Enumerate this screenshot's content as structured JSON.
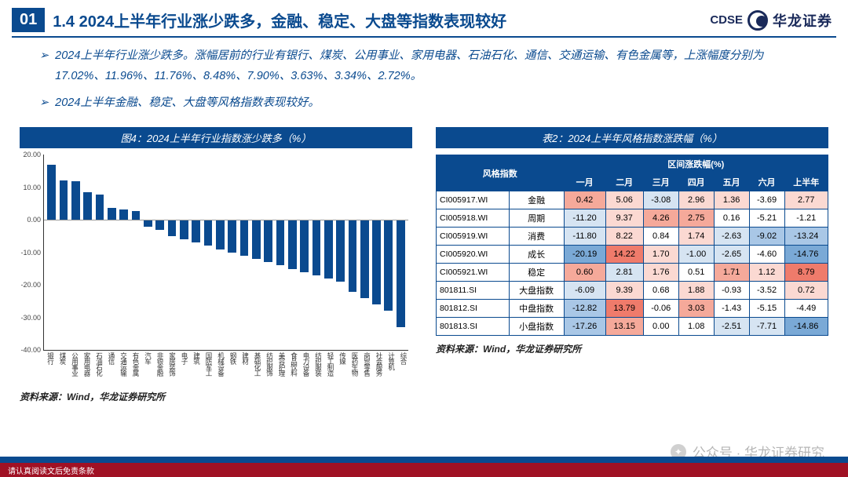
{
  "header": {
    "num": "01",
    "title": "1.4 2024上半年行业涨少跌多，金融、稳定、大盘等指数表现较好",
    "logo_cdse": "CDSE",
    "logo_cn": "华龙证券"
  },
  "bullets": [
    "2024上半年行业涨少跌多。涨幅居前的行业有银行、煤炭、公用事业、家用电器、石油石化、通信、交通运输、有色金属等，上涨幅度分别为17.02%、11.96%、11.76%、8.48%、7.90%、3.63%、3.34%、2.72%。",
    "2024上半年金融、稳定、大盘等风格指数表现较好。"
  ],
  "chart": {
    "title": "图4：2024上半年行业指数涨少跌多（%）",
    "ylim": [
      -40,
      20
    ],
    "y_ticks": [
      -40,
      -30,
      -20,
      -10,
      0,
      10,
      20
    ],
    "zero_at": 20,
    "categories": [
      "银行",
      "煤炭",
      "公用事业",
      "家用电器",
      "石油石化",
      "通信",
      "交通运输",
      "有色金属",
      "汽车",
      "非银金融",
      "家居装饰",
      "电子",
      "建筑",
      "国防军工",
      "机械设备",
      "钢铁",
      "建材",
      "基础化工",
      "纺织服饰",
      "美容护理",
      "食品饮料",
      "电力设备",
      "纺织服装",
      "轻工制造",
      "传媒",
      "医药生物",
      "商贸零售",
      "社会服务",
      "计算机",
      "综合"
    ],
    "values": [
      17.0,
      12.0,
      11.8,
      8.5,
      7.9,
      3.6,
      3.3,
      2.7,
      -2,
      -3,
      -5,
      -6,
      -7,
      -8,
      -9,
      -10,
      -11,
      -12,
      -13,
      -14,
      -15,
      -16,
      -17,
      -18,
      -19,
      -22,
      -24,
      -26,
      -28,
      -33
    ],
    "bar_color": "#0a4a8f",
    "src": "资料来源：Wind，华龙证券研究所"
  },
  "table": {
    "title": "表2：2024上半年风格指数涨跌幅（%）",
    "group1": "风格指数",
    "group2": "区间涨跌幅(%)",
    "months": [
      "一月",
      "二月",
      "三月",
      "四月",
      "五月",
      "六月",
      "上半年"
    ],
    "rows": [
      {
        "code": "CI005917.WI",
        "name": "金融",
        "vals": [
          "0.42",
          "5.06",
          "-3.08",
          "2.96",
          "1.36",
          "-3.69",
          "2.77"
        ]
      },
      {
        "code": "CI005918.WI",
        "name": "周期",
        "vals": [
          "-11.20",
          "9.37",
          "4.26",
          "2.75",
          "0.16",
          "-5.21",
          "-1.21"
        ]
      },
      {
        "code": "CI005919.WI",
        "name": "消费",
        "vals": [
          "-11.80",
          "8.22",
          "0.84",
          "1.74",
          "-2.63",
          "-9.02",
          "-13.24"
        ]
      },
      {
        "code": "CI005920.WI",
        "name": "成长",
        "vals": [
          "-20.19",
          "14.22",
          "1.70",
          "-1.00",
          "-2.65",
          "-4.60",
          "-14.76"
        ]
      },
      {
        "code": "CI005921.WI",
        "name": "稳定",
        "vals": [
          "0.60",
          "2.81",
          "1.76",
          "0.51",
          "1.71",
          "1.12",
          "8.79"
        ]
      },
      {
        "code": "801811.SI",
        "name": "大盘指数",
        "vals": [
          "-6.09",
          "9.39",
          "0.68",
          "1.88",
          "-0.93",
          "-3.52",
          "0.72"
        ]
      },
      {
        "code": "801812.SI",
        "name": "中盘指数",
        "vals": [
          "-12.82",
          "13.79",
          "-0.06",
          "3.03",
          "-1.43",
          "-5.15",
          "-4.49"
        ]
      },
      {
        "code": "801813.SI",
        "name": "小盘指数",
        "vals": [
          "-17.26",
          "13.15",
          "0.00",
          "1.08",
          "-2.51",
          "-7.71",
          "-14.86"
        ]
      }
    ],
    "heat": {
      "colors": {
        "r3": "#ef7b6b",
        "r2": "#f5a99a",
        "r1": "#fbd9d2",
        "n": "#ffffff",
        "b1": "#d6e4f2",
        "b2": "#a9c7e6",
        "b3": "#7aa9d6"
      },
      "map": [
        [
          "r2",
          "r1",
          "b1",
          "r1",
          "r1",
          "n",
          "r1"
        ],
        [
          "b1",
          "r1",
          "r2",
          "r2",
          "n",
          "n",
          "n"
        ],
        [
          "b1",
          "r1",
          "n",
          "r1",
          "b1",
          "b2",
          "b2"
        ],
        [
          "b3",
          "r3",
          "r1",
          "b1",
          "b1",
          "n",
          "b3"
        ],
        [
          "r2",
          "b1",
          "r1",
          "n",
          "r2",
          "r1",
          "r3"
        ],
        [
          "b1",
          "r1",
          "n",
          "r1",
          "n",
          "n",
          "r1"
        ],
        [
          "b2",
          "r3",
          "n",
          "r2",
          "n",
          "n",
          "n"
        ],
        [
          "b2",
          "r2",
          "n",
          "n",
          "b1",
          "b1",
          "b3"
        ]
      ]
    },
    "src": "资料来源：Wind，华龙证券研究所"
  },
  "footer": {
    "disclaimer": "请认真阅读文后免责条款"
  },
  "watermark": "公众号 · 华龙证券研究"
}
